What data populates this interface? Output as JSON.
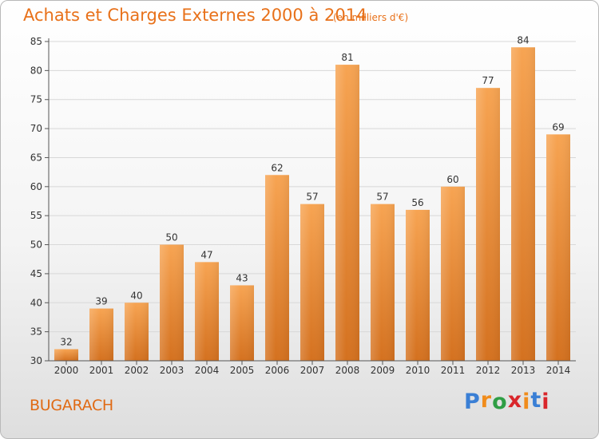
{
  "header": {
    "title": "Achats et Charges Externes 2000 à 2014",
    "subtitle": "(en milliers d'€)"
  },
  "footer": {
    "commune": "BUGARACH",
    "brand": [
      "P",
      "r",
      "o",
      "x",
      "i",
      "t",
      "i"
    ],
    "brand_colors": [
      "#3a7fd5",
      "#f08c1c",
      "#2f9e45",
      "#d9262b",
      "#f08c1c",
      "#3a7fd5",
      "#d9262b"
    ]
  },
  "colors": {
    "bar_light": "#f7a452",
    "bar_dark": "#d4711f",
    "grid": "#d8d8d8",
    "axis": "#555555"
  },
  "chart_data": {
    "type": "bar",
    "categories": [
      "2000",
      "2001",
      "2002",
      "2003",
      "2004",
      "2005",
      "2006",
      "2007",
      "2008",
      "2009",
      "2010",
      "2011",
      "2012",
      "2013",
      "2014"
    ],
    "values": [
      32,
      39,
      40,
      50,
      47,
      43,
      62,
      57,
      81,
      57,
      56,
      60,
      77,
      84,
      69
    ],
    "title": "Achats et Charges Externes 2000 à 2014",
    "subtitle": "(en milliers d'€)",
    "ylim": [
      30,
      85
    ],
    "yticks": [
      30,
      35,
      40,
      45,
      50,
      55,
      60,
      65,
      70,
      75,
      80,
      85
    ],
    "grid": true,
    "data_labels": true
  }
}
